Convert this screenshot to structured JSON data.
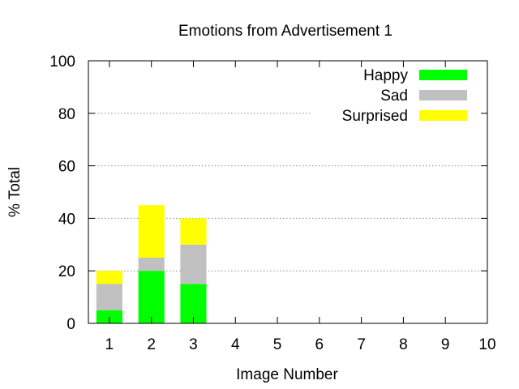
{
  "chart_data": {
    "type": "bar",
    "stacked": true,
    "title": "Emotions from Advertisement 1",
    "xlabel": "Image Number",
    "ylabel": "% Total",
    "categories": [
      "1",
      "2",
      "3",
      "4",
      "5",
      "6",
      "7",
      "8",
      "9",
      "10"
    ],
    "xlim": [
      0.5,
      10
    ],
    "ylim": [
      0,
      100
    ],
    "yticks": [
      0,
      20,
      40,
      60,
      80,
      100
    ],
    "grid": true,
    "legend_position": "top-right",
    "series": [
      {
        "name": "Happy",
        "color": "#00ff00",
        "values": [
          5,
          20,
          15,
          0,
          0,
          0,
          0,
          0,
          0,
          0
        ]
      },
      {
        "name": "Sad",
        "color": "#c0c0c0",
        "values": [
          10,
          5,
          15,
          0,
          0,
          0,
          0,
          0,
          0,
          0
        ]
      },
      {
        "name": "Surprised",
        "color": "#ffff00",
        "values": [
          5,
          20,
          10,
          0,
          0,
          0,
          0,
          0,
          0,
          0
        ]
      }
    ]
  }
}
